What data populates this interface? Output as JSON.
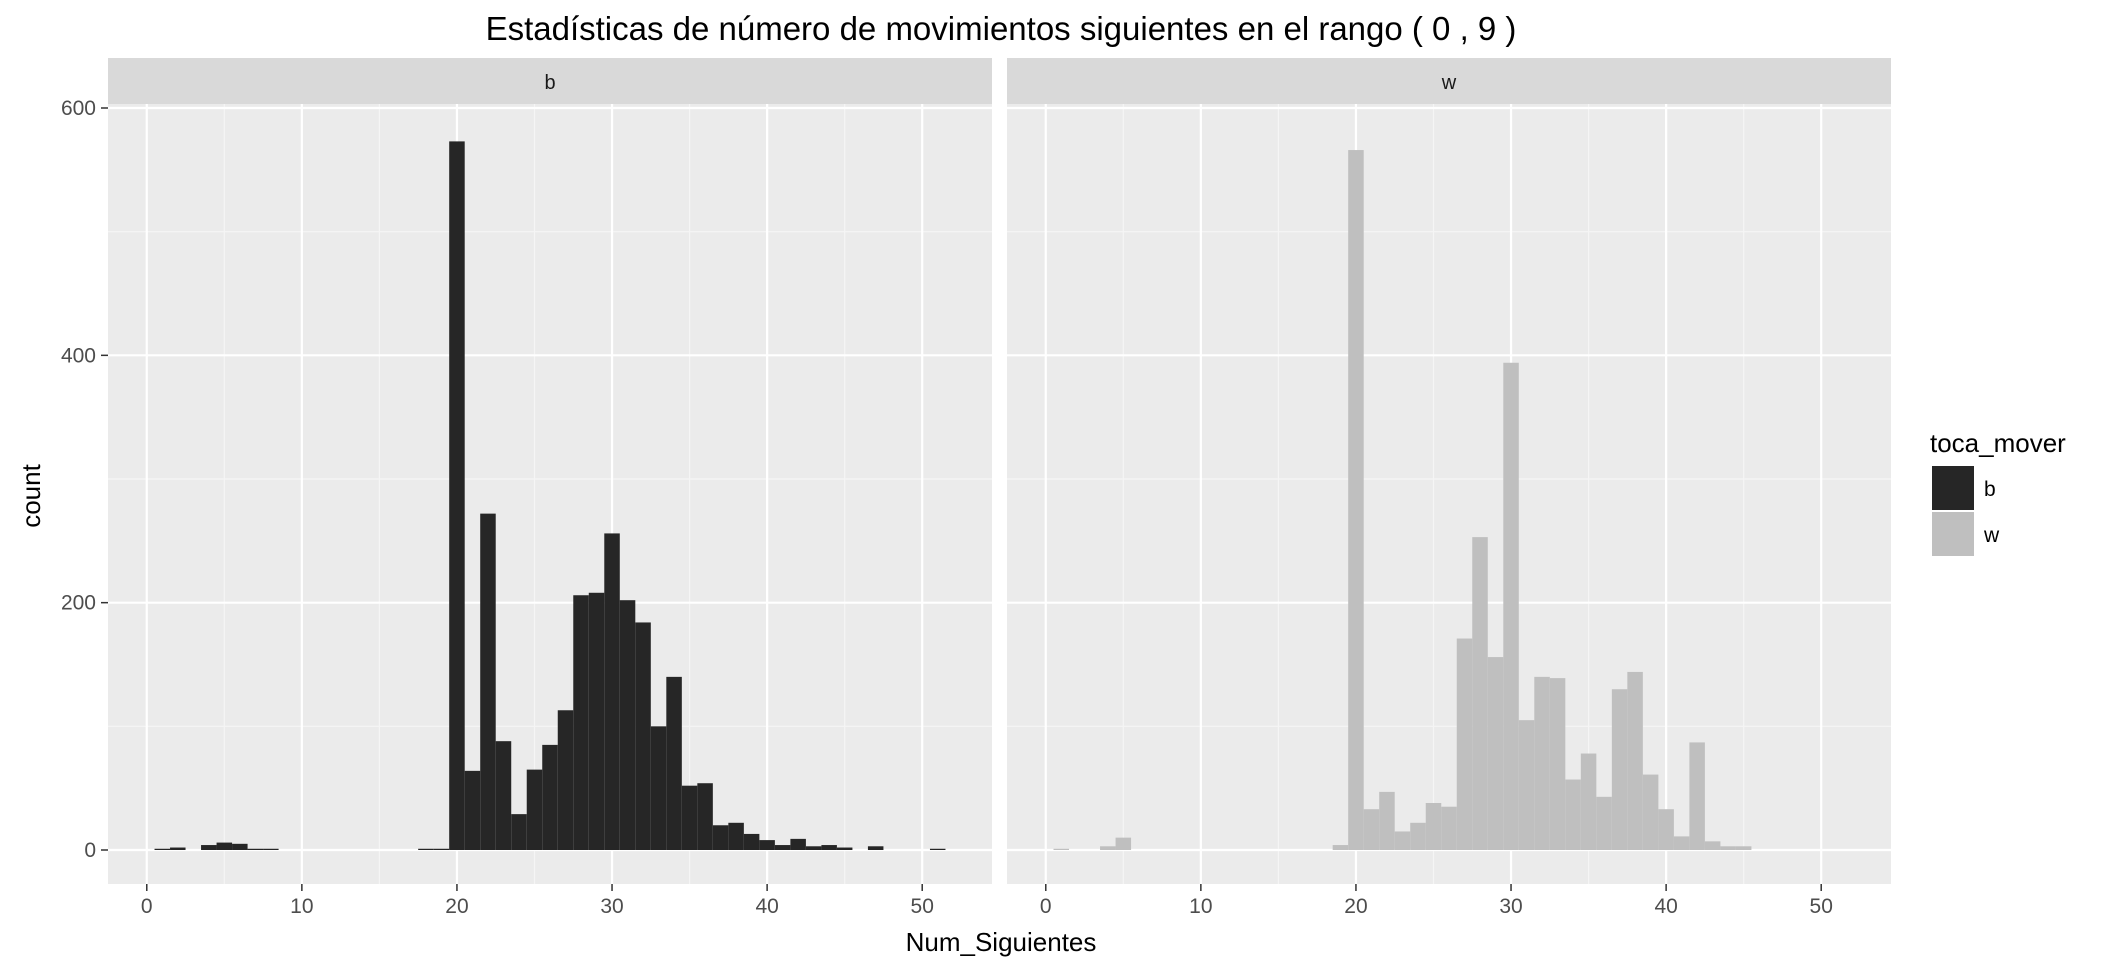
{
  "chart_data": {
    "type": "bar",
    "title": "Estadísticas de número de movimientos siguientes en el rango ( 0 , 9 )",
    "xlabel": "Num_Siguientes",
    "ylabel": "count",
    "xlim": [
      -2.5,
      54.5
    ],
    "ylim": [
      -28,
      600
    ],
    "x_ticks": [
      0,
      10,
      20,
      30,
      40,
      50
    ],
    "y_ticks": [
      0,
      200,
      400,
      600
    ],
    "bin_width": 1,
    "grid": true,
    "legend": {
      "title": "toca_mover",
      "position": "right",
      "entries": [
        {
          "label": "b",
          "color": "#262626"
        },
        {
          "label": "w",
          "color": "#bfbfbf"
        }
      ]
    },
    "panels": [
      {
        "strip": "b",
        "color": "#262626",
        "bins": [
          {
            "x": 1,
            "count": 1
          },
          {
            "x": 2,
            "count": 2
          },
          {
            "x": 4,
            "count": 4
          },
          {
            "x": 5,
            "count": 6
          },
          {
            "x": 6,
            "count": 5
          },
          {
            "x": 7,
            "count": 1
          },
          {
            "x": 8,
            "count": 1
          },
          {
            "x": 18,
            "count": 1
          },
          {
            "x": 19,
            "count": 1
          },
          {
            "x": 20,
            "count": 573
          },
          {
            "x": 21,
            "count": 64
          },
          {
            "x": 22,
            "count": 272
          },
          {
            "x": 23,
            "count": 88
          },
          {
            "x": 24,
            "count": 29
          },
          {
            "x": 25,
            "count": 65
          },
          {
            "x": 26,
            "count": 85
          },
          {
            "x": 27,
            "count": 113
          },
          {
            "x": 28,
            "count": 206
          },
          {
            "x": 29,
            "count": 208
          },
          {
            "x": 30,
            "count": 256
          },
          {
            "x": 31,
            "count": 202
          },
          {
            "x": 32,
            "count": 184
          },
          {
            "x": 33,
            "count": 100
          },
          {
            "x": 34,
            "count": 140
          },
          {
            "x": 35,
            "count": 52
          },
          {
            "x": 36,
            "count": 54
          },
          {
            "x": 37,
            "count": 20
          },
          {
            "x": 38,
            "count": 22
          },
          {
            "x": 39,
            "count": 13
          },
          {
            "x": 40,
            "count": 8
          },
          {
            "x": 41,
            "count": 4
          },
          {
            "x": 42,
            "count": 9
          },
          {
            "x": 43,
            "count": 3
          },
          {
            "x": 44,
            "count": 4
          },
          {
            "x": 45,
            "count": 2
          },
          {
            "x": 47,
            "count": 3
          },
          {
            "x": 51,
            "count": 1
          }
        ]
      },
      {
        "strip": "w",
        "color": "#bfbfbf",
        "bins": [
          {
            "x": 1,
            "count": 1
          },
          {
            "x": 4,
            "count": 3
          },
          {
            "x": 5,
            "count": 10
          },
          {
            "x": 19,
            "count": 4
          },
          {
            "x": 20,
            "count": 566
          },
          {
            "x": 21,
            "count": 33
          },
          {
            "x": 22,
            "count": 47
          },
          {
            "x": 23,
            "count": 15
          },
          {
            "x": 24,
            "count": 22
          },
          {
            "x": 25,
            "count": 38
          },
          {
            "x": 26,
            "count": 35
          },
          {
            "x": 27,
            "count": 171
          },
          {
            "x": 28,
            "count": 253
          },
          {
            "x": 29,
            "count": 156
          },
          {
            "x": 30,
            "count": 394
          },
          {
            "x": 31,
            "count": 105
          },
          {
            "x": 32,
            "count": 140
          },
          {
            "x": 33,
            "count": 139
          },
          {
            "x": 34,
            "count": 57
          },
          {
            "x": 35,
            "count": 78
          },
          {
            "x": 36,
            "count": 43
          },
          {
            "x": 37,
            "count": 130
          },
          {
            "x": 38,
            "count": 144
          },
          {
            "x": 39,
            "count": 61
          },
          {
            "x": 40,
            "count": 33
          },
          {
            "x": 41,
            "count": 11
          },
          {
            "x": 42,
            "count": 87
          },
          {
            "x": 43,
            "count": 7
          },
          {
            "x": 44,
            "count": 3
          },
          {
            "x": 45,
            "count": 3
          }
        ]
      }
    ]
  }
}
